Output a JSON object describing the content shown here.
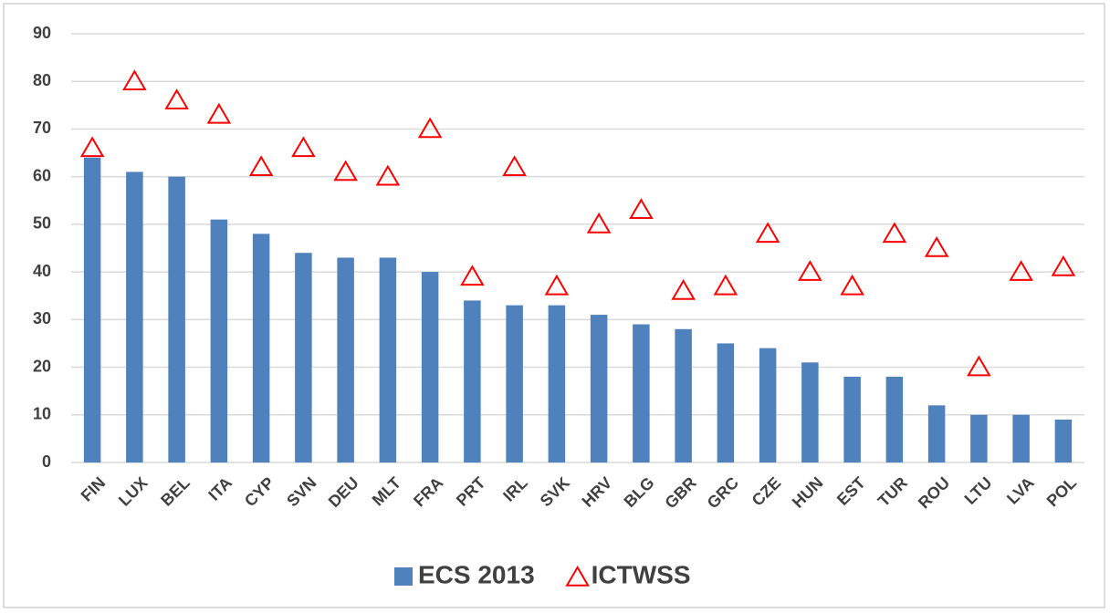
{
  "chart_data": {
    "type": "bar",
    "categories": [
      "FIN",
      "LUX",
      "BEL",
      "ITA",
      "CYP",
      "SVN",
      "DEU",
      "MLT",
      "FRA",
      "PRT",
      "IRL",
      "SVK",
      "HRV",
      "BLG",
      "GBR",
      "GRC",
      "CZE",
      "HUN",
      "EST",
      "TUR",
      "ROU",
      "LTU",
      "LVA",
      "POL"
    ],
    "series": [
      {
        "name": "ECS 2013",
        "type": "bar",
        "color": "#4f81bd",
        "values": [
          64,
          61,
          60,
          51,
          48,
          44,
          43,
          43,
          40,
          34,
          33,
          33,
          31,
          29,
          28,
          25,
          24,
          21,
          18,
          18,
          12,
          10,
          10,
          9
        ]
      },
      {
        "name": "ICTWSS",
        "type": "scatter",
        "marker": "triangle",
        "color": "#ff0000",
        "values": [
          66,
          80,
          76,
          73,
          62,
          66,
          61,
          60,
          70,
          39,
          62,
          37,
          50,
          53,
          36,
          37,
          48,
          40,
          37,
          48,
          45,
          20,
          40,
          41
        ]
      }
    ],
    "ylim": [
      0,
      90
    ],
    "yticks": [
      0,
      10,
      20,
      30,
      40,
      50,
      60,
      70,
      80,
      90
    ],
    "grid": true,
    "legend": "bottom"
  }
}
